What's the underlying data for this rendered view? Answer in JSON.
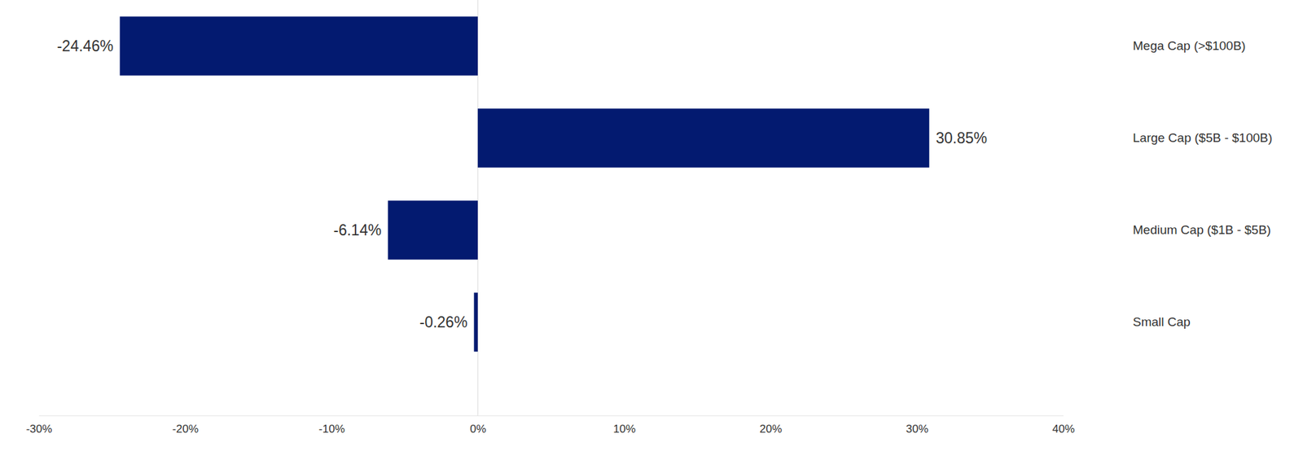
{
  "chart_data": {
    "type": "bar",
    "orientation": "horizontal",
    "categories": [
      "Mega Cap (>$100B)",
      "Large Cap ($5B - $100B)",
      "Medium Cap ($1B - $5B)",
      "Small Cap"
    ],
    "values": [
      -24.46,
      30.85,
      -6.14,
      -0.26
    ],
    "value_labels": [
      "-24.46%",
      "30.85%",
      "-6.14%",
      "-0.26%"
    ],
    "color": "#031a70",
    "data_labels": true,
    "xlim": [
      -30,
      40
    ],
    "xticks": [
      {
        "value": -30,
        "label": "-30%"
      },
      {
        "value": -20,
        "label": "-20%"
      },
      {
        "value": -10,
        "label": "-10%"
      },
      {
        "value": 0,
        "label": "0%"
      },
      {
        "value": 10,
        "label": "10%"
      },
      {
        "value": 20,
        "label": "20%"
      },
      {
        "value": 30,
        "label": "30%"
      },
      {
        "value": 40,
        "label": "40%"
      }
    ]
  }
}
